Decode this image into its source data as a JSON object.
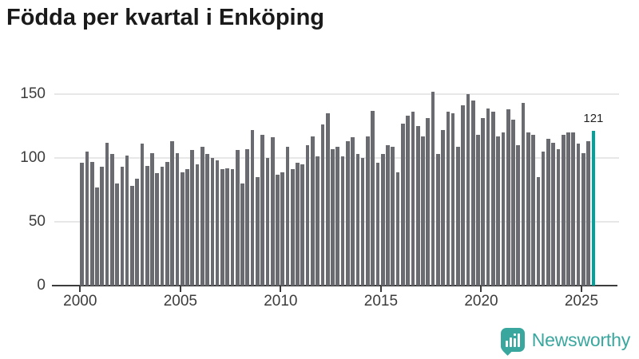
{
  "title": "Födda per kvartal i Enköping",
  "branding": {
    "logo_text": "Newsworthy",
    "logo_color": "#3aa79f"
  },
  "chart_data": {
    "type": "bar",
    "title": "Födda per kvartal i Enköping",
    "x_start": "2000-Q1",
    "x_end": "2025-Q3",
    "frequency": "quarterly",
    "values": [
      96,
      105,
      97,
      77,
      93,
      112,
      103,
      80,
      93,
      102,
      78,
      84,
      111,
      94,
      104,
      88,
      93,
      97,
      113,
      104,
      89,
      91,
      106,
      95,
      109,
      103,
      100,
      98,
      91,
      92,
      91,
      106,
      80,
      107,
      122,
      85,
      118,
      100,
      116,
      87,
      89,
      109,
      91,
      96,
      95,
      110,
      117,
      101,
      126,
      135,
      107,
      109,
      101,
      113,
      116,
      103,
      100,
      117,
      137,
      96,
      103,
      110,
      109,
      89,
      127,
      133,
      136,
      125,
      117,
      131,
      152,
      103,
      122,
      136,
      135,
      109,
      141,
      150,
      145,
      118,
      131,
      139,
      136,
      117,
      120,
      138,
      130,
      110,
      143,
      120,
      118,
      85,
      105,
      115,
      112,
      107,
      118,
      120,
      120,
      111,
      104,
      113,
      121
    ],
    "x_ticks": [
      "2000",
      "2005",
      "2010",
      "2015",
      "2020",
      "2025"
    ],
    "quarters_per_x_tick": 20,
    "y_ticks": [
      0,
      50,
      100,
      150
    ],
    "ylim": [
      0,
      158
    ],
    "grid": "horizontal",
    "legend": "none",
    "highlight_index": 102,
    "highlight_value_label": "121",
    "bar_color": "#6a6a71",
    "highlight_color": "#00a39c",
    "axis_color": "#3c3c3c",
    "gridline_color": "#e7e7e7"
  }
}
